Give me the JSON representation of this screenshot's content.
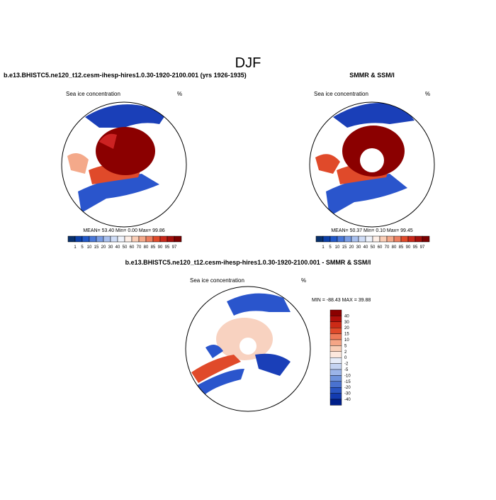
{
  "title": "DJF",
  "panels": [
    {
      "title": "b.e13.BHISTC5.ne120_t12.cesm-ihesp-hires1.0.30-1920-2100.001 (yrs 1926-1935)",
      "left_label": "Sea ice concentration",
      "right_label": "%",
      "stats": "MEAN=  53.40  Min=   0.00  Max=  99.86",
      "colorbar_labels": [
        "1",
        "5",
        "10",
        "15",
        "20",
        "30",
        "40",
        "50",
        "60",
        "70",
        "80",
        "85",
        "90",
        "95",
        "97"
      ]
    },
    {
      "title": "SMMR & SSM/I",
      "left_label": "Sea ice concentration",
      "right_label": "%",
      "stats": "MEAN=  50.37  Min=   0.10  Max=  99.45",
      "colorbar_labels": [
        "1",
        "5",
        "10",
        "15",
        "20",
        "30",
        "40",
        "50",
        "60",
        "70",
        "80",
        "85",
        "90",
        "95",
        "97"
      ]
    },
    {
      "title": "b.e13.BHISTC5.ne120_t12.cesm-ihesp-hires1.0.30-1920-2100.001 - SMMR & SSM/I",
      "left_label": "Sea ice concentration",
      "right_label": "%",
      "stats": "MIN = -88.43 MAX =  39.88",
      "colorbar_labels": [
        "40",
        "30",
        "20",
        "15",
        "10",
        "5",
        "2",
        "0",
        "-2",
        "-5",
        "-10",
        "-15",
        "-20",
        "-30",
        "-40"
      ]
    }
  ]
}
